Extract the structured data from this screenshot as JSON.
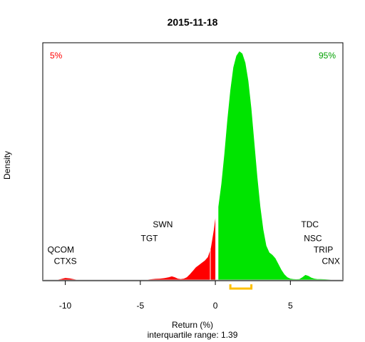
{
  "chart_data": {
    "type": "area",
    "title": "2015-11-18",
    "xlabel": "Return (%)",
    "ylabel": "Density",
    "subtitle": "interquartile range: 1.39",
    "xlim": [
      -11.5,
      8.5
    ],
    "ylim": [
      0,
      1.0
    ],
    "x_ticks": [
      -10,
      -5,
      0,
      5
    ],
    "x_tick_labels": [
      "-10",
      "-5",
      "0",
      "5"
    ],
    "split_at": 0,
    "negative_color": "#ff0000",
    "positive_color": "#00e400",
    "quantile_labels": [
      {
        "text": "5%",
        "color": "#ff0000",
        "position": "top-left"
      },
      {
        "text": "95%",
        "color": "#00a000",
        "position": "top-right"
      }
    ],
    "iqr_bracket": {
      "from": 1.0,
      "to": 2.4,
      "color": "#ffc000"
    },
    "density_x": [
      -10.6,
      -10.3,
      -10.0,
      -9.7,
      -9.4,
      -9.2,
      -9.0,
      -4.7,
      -4.3,
      -4.0,
      -3.7,
      -3.4,
      -3.1,
      -2.9,
      -2.7,
      -2.5,
      -2.3,
      -2.1,
      -1.9,
      -1.7,
      -1.5,
      -1.3,
      -1.1,
      -0.9,
      -0.7,
      -0.5,
      -0.3,
      -0.1,
      0.0,
      0.2,
      0.4,
      0.6,
      0.8,
      1.0,
      1.2,
      1.4,
      1.6,
      1.8,
      2.0,
      2.2,
      2.4,
      2.6,
      2.8,
      3.0,
      3.2,
      3.4,
      3.6,
      3.8,
      4.0,
      4.2,
      4.4,
      4.6,
      4.8,
      5.0,
      5.2,
      5.4,
      5.6,
      5.8,
      6.0,
      6.2,
      6.4,
      6.6,
      6.8,
      7.0,
      7.3,
      7.6,
      7.9,
      8.2
    ],
    "density_y": [
      0.0,
      0.004,
      0.009,
      0.007,
      0.003,
      0.001,
      0.0,
      0.0,
      0.003,
      0.005,
      0.006,
      0.008,
      0.012,
      0.016,
      0.012,
      0.006,
      0.004,
      0.006,
      0.012,
      0.025,
      0.04,
      0.055,
      0.065,
      0.075,
      0.085,
      0.1,
      0.14,
      0.22,
      0.27,
      0.32,
      0.42,
      0.55,
      0.7,
      0.83,
      0.93,
      0.98,
      1.0,
      0.99,
      0.95,
      0.87,
      0.75,
      0.6,
      0.45,
      0.32,
      0.22,
      0.15,
      0.12,
      0.11,
      0.095,
      0.07,
      0.045,
      0.025,
      0.012,
      0.006,
      0.004,
      0.003,
      0.004,
      0.012,
      0.022,
      0.018,
      0.01,
      0.006,
      0.004,
      0.004,
      0.003,
      0.002,
      0.001,
      0.0
    ],
    "ticker_labels": [
      {
        "text": "QCOM",
        "x": -10.3,
        "y": 0.12
      },
      {
        "text": "CTXS",
        "x": -10.0,
        "y": 0.07
      },
      {
        "text": "SWN",
        "x": -3.5,
        "y": 0.23
      },
      {
        "text": "TGT",
        "x": -4.4,
        "y": 0.17
      },
      {
        "text": "TDC",
        "x": 6.3,
        "y": 0.23
      },
      {
        "text": "NSC",
        "x": 6.5,
        "y": 0.17
      },
      {
        "text": "TRIP",
        "x": 7.2,
        "y": 0.12
      },
      {
        "text": "CNX",
        "x": 7.7,
        "y": 0.07
      }
    ]
  }
}
